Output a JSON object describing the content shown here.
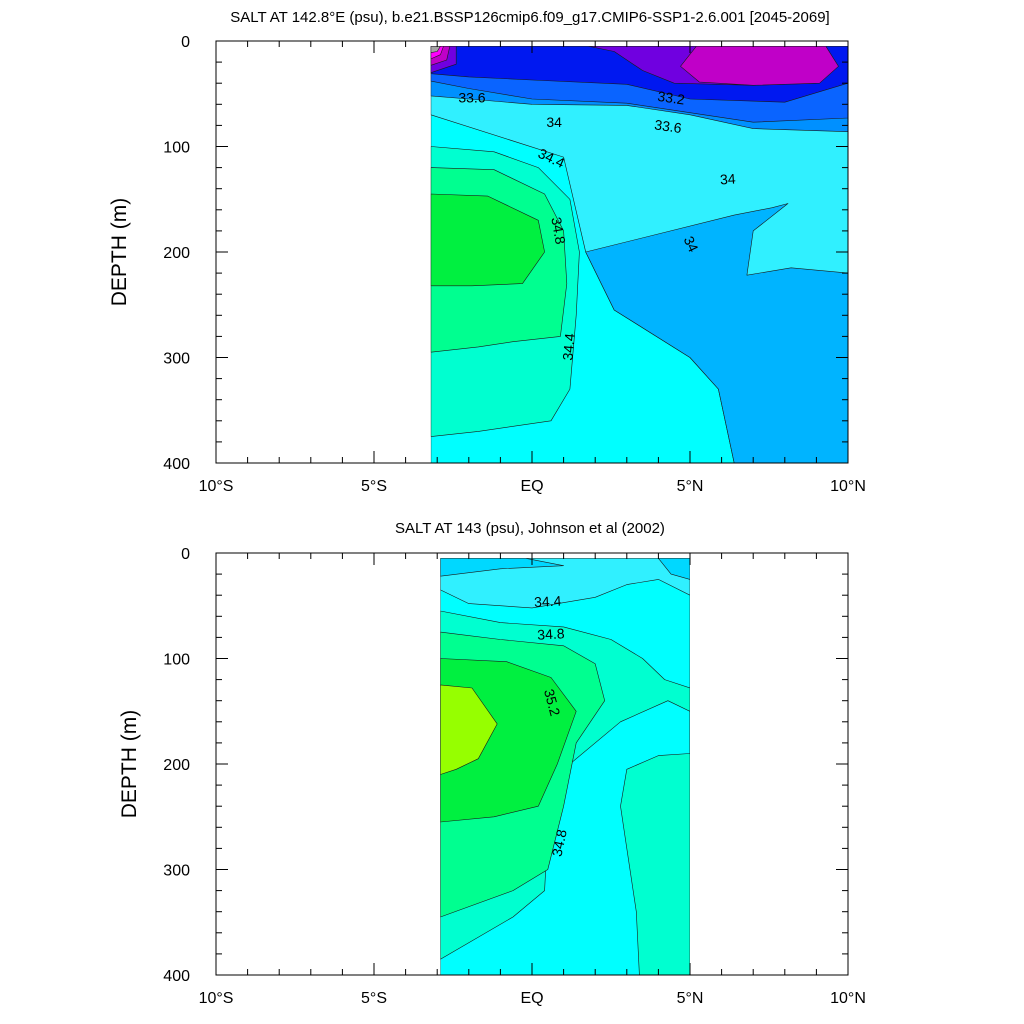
{
  "chart_data": [
    {
      "type": "contour",
      "title": "SALT AT 142.8°E (psu), b.e21.BSSP126cmip6.f09_g17.CMIP6-SSP1-2.6.001 [2045-2069]",
      "ylabel": "DEPTH (m)",
      "xlim": [
        -10,
        10
      ],
      "ylim": [
        400,
        0
      ],
      "x_ticks": [
        -10,
        -5,
        0,
        5,
        10
      ],
      "x_tick_labels": [
        "10°S",
        "5°S",
        "EQ",
        "5°N",
        "10°N"
      ],
      "y_ticks": [
        0,
        100,
        200,
        300,
        400
      ],
      "y_tick_labels": [
        "0",
        "100",
        "200",
        "300",
        "400"
      ],
      "data_extent": {
        "lat": [
          -3.2,
          10
        ],
        "depth": [
          5,
          400
        ]
      },
      "fill_colors": [
        "#a4a4a4",
        "#ff00ff",
        "#c000c8",
        "#7000e0",
        "#0018f0",
        "#0a64ff",
        "#0090ff",
        "#00b4ff",
        "#00d8ff",
        "#30f0ff",
        "#00ffff",
        "#00ffd0",
        "#00ff90",
        "#00f040",
        "#96ff00"
      ],
      "regions": [
        {
          "fill": 10,
          "pts": [
            [
              -3.2,
              5
            ],
            [
              10,
              5
            ],
            [
              10,
              400
            ],
            [
              -3.2,
              400
            ]
          ]
        },
        {
          "fill": 9,
          "pts": [
            [
              -3.2,
              5
            ],
            [
              10,
              5
            ],
            [
              10,
              400
            ],
            [
              6.4,
              400
            ],
            [
              5.9,
              330
            ],
            [
              5.0,
              300
            ],
            [
              2.6,
              255
            ],
            [
              1.7,
              200
            ],
            [
              1.0,
              110
            ],
            [
              -3.2,
              70
            ]
          ]
        },
        {
          "fill": 7,
          "pts": [
            [
              6.4,
              165
            ],
            [
              7.6,
              158
            ],
            [
              8.1,
              154
            ],
            [
              7.0,
              180
            ],
            [
              6.8,
              222
            ],
            [
              8.2,
              215
            ],
            [
              10,
              220
            ],
            [
              10,
              400
            ],
            [
              6.4,
              400
            ],
            [
              5.9,
              330
            ],
            [
              5.0,
              300
            ],
            [
              2.6,
              255
            ],
            [
              1.7,
              200
            ]
          ]
        },
        {
          "fill": 6,
          "pts": [
            [
              -3.2,
              5
            ],
            [
              10,
              5
            ],
            [
              10,
              86
            ],
            [
              7,
              83
            ],
            [
              5,
              70
            ],
            [
              3,
              61
            ],
            [
              0,
              60
            ],
            [
              -2,
              55
            ],
            [
              -3.2,
              52
            ]
          ]
        },
        {
          "fill": 5,
          "pts": [
            [
              -3.2,
              5
            ],
            [
              10,
              5
            ],
            [
              10,
              73
            ],
            [
              7,
              77
            ],
            [
              5,
              68
            ],
            [
              3,
              59
            ],
            [
              0,
              55
            ],
            [
              -2,
              45
            ],
            [
              -3.2,
              38
            ]
          ]
        },
        {
          "fill": 4,
          "pts": [
            [
              -3.2,
              5
            ],
            [
              10,
              5
            ],
            [
              10,
              40
            ],
            [
              8,
              58
            ],
            [
              5,
              55
            ],
            [
              3,
              41
            ],
            [
              0,
              37
            ],
            [
              -2,
              34
            ],
            [
              -3.2,
              31
            ]
          ]
        },
        {
          "fill": 3,
          "pts": [
            [
              1.8,
              5
            ],
            [
              8.7,
              5
            ],
            [
              9.3,
              30
            ],
            [
              9.0,
              40
            ],
            [
              7,
              42
            ],
            [
              4.5,
              40
            ],
            [
              3.5,
              28
            ],
            [
              2.6,
              10
            ]
          ]
        },
        {
          "fill": 2,
          "pts": [
            [
              5.2,
              5
            ],
            [
              9.3,
              5
            ],
            [
              9.7,
              24
            ],
            [
              9.1,
              40
            ],
            [
              7,
              42
            ],
            [
              5.3,
              39
            ],
            [
              4.7,
              24
            ]
          ]
        },
        {
          "fill": 11,
          "pts": [
            [
              -3.2,
              100
            ],
            [
              -1.2,
              105
            ],
            [
              0.2,
              120
            ],
            [
              1.2,
              150
            ],
            [
              1.5,
              200
            ],
            [
              1.4,
              260
            ],
            [
              1.2,
              330
            ],
            [
              0.6,
              360
            ],
            [
              -1.7,
              370
            ],
            [
              -3.2,
              375
            ]
          ]
        },
        {
          "fill": 12,
          "pts": [
            [
              -3.2,
              120
            ],
            [
              -1.2,
              122
            ],
            [
              0.4,
              145
            ],
            [
              1.0,
              180
            ],
            [
              1.1,
              230
            ],
            [
              0.9,
              280
            ],
            [
              -0.6,
              285
            ],
            [
              -1.7,
              290
            ],
            [
              -3.2,
              295
            ]
          ]
        },
        {
          "fill": 13,
          "pts": [
            [
              -3.2,
              145
            ],
            [
              -1.4,
              147
            ],
            [
              0.2,
              170
            ],
            [
              0.4,
              200
            ],
            [
              -0.3,
              230
            ],
            [
              -1.9,
              232
            ],
            [
              -3.2,
              232
            ]
          ]
        },
        {
          "fill": 3,
          "pts": [
            [
              -3.2,
              5
            ],
            [
              -2.4,
              5
            ],
            [
              -2.4,
              22
            ],
            [
              -3.2,
              30
            ]
          ]
        },
        {
          "fill": 2,
          "pts": [
            [
              -3.2,
              5
            ],
            [
              -2.6,
              5
            ],
            [
              -2.7,
              18
            ],
            [
              -3.2,
              23
            ]
          ]
        },
        {
          "fill": 1,
          "pts": [
            [
              -3.2,
              5
            ],
            [
              -2.8,
              5
            ],
            [
              -2.9,
              13
            ],
            [
              -3.2,
              17
            ]
          ]
        },
        {
          "fill": 0,
          "pts": [
            [
              -3.2,
              5
            ],
            [
              -2.9,
              5
            ],
            [
              -3.0,
              10
            ],
            [
              -3.2,
              11
            ]
          ]
        }
      ],
      "contour_labels": [
        {
          "text": "33.6",
          "x": -1.9,
          "y": 55,
          "angle": 0
        },
        {
          "text": "33.2",
          "x": 4.4,
          "y": 55,
          "angle": 8
        },
        {
          "text": "34",
          "x": 0.7,
          "y": 78,
          "angle": 0
        },
        {
          "text": "33.6",
          "x": 4.3,
          "y": 82,
          "angle": 8
        },
        {
          "text": "34.4",
          "x": 0.6,
          "y": 112,
          "angle": 25
        },
        {
          "text": "34",
          "x": 6.2,
          "y": 132,
          "angle": -4
        },
        {
          "text": "34.8",
          "x": 0.8,
          "y": 180,
          "angle": 80
        },
        {
          "text": "34",
          "x": 5.0,
          "y": 193,
          "angle": 65
        },
        {
          "text": "34.4",
          "x": 1.2,
          "y": 290,
          "angle": -85
        }
      ]
    },
    {
      "type": "contour",
      "title": "SALT AT 143 (psu), Johnson et al (2002)",
      "ylabel": "DEPTH (m)",
      "xlim": [
        -10,
        10
      ],
      "ylim": [
        400,
        0
      ],
      "x_ticks": [
        -10,
        -5,
        0,
        5,
        10
      ],
      "x_tick_labels": [
        "10°S",
        "5°S",
        "EQ",
        "5°N",
        "10°N"
      ],
      "y_ticks": [
        0,
        100,
        200,
        300,
        400
      ],
      "y_tick_labels": [
        "0",
        "100",
        "200",
        "300",
        "400"
      ],
      "data_extent": {
        "lat": [
          -2.9,
          5
        ],
        "depth": [
          5,
          400
        ]
      },
      "fill_colors": [
        "#a4a4a4",
        "#ff00ff",
        "#c000c8",
        "#7000e0",
        "#0018f0",
        "#0a64ff",
        "#0090ff",
        "#00b4ff",
        "#00d8ff",
        "#30f0ff",
        "#00ffff",
        "#00ffd0",
        "#00ff90",
        "#00f040",
        "#96ff00"
      ],
      "regions": [
        {
          "fill": 10,
          "pts": [
            [
              -2.9,
              5
            ],
            [
              5,
              5
            ],
            [
              5,
              400
            ],
            [
              -2.9,
              400
            ]
          ]
        },
        {
          "fill": 9,
          "pts": [
            [
              -2.9,
              5
            ],
            [
              5,
              5
            ],
            [
              5,
              40
            ],
            [
              4,
              25
            ],
            [
              3,
              30
            ],
            [
              2,
              42
            ],
            [
              0,
              52
            ],
            [
              -2,
              48
            ],
            [
              -2.9,
              35
            ]
          ]
        },
        {
          "fill": 8,
          "pts": [
            [
              -2.9,
              5
            ],
            [
              -0.2,
              5
            ],
            [
              1.0,
              12
            ],
            [
              -1,
              15
            ],
            [
              -2.9,
              22
            ]
          ]
        },
        {
          "fill": 8,
          "pts": [
            [
              4.0,
              5
            ],
            [
              5,
              5
            ],
            [
              5,
              25
            ],
            [
              4.4,
              20
            ]
          ]
        },
        {
          "fill": 11,
          "pts": [
            [
              -2.9,
              55
            ],
            [
              -1,
              66
            ],
            [
              1,
              70
            ],
            [
              2.5,
              82
            ],
            [
              3.5,
              100
            ],
            [
              4.2,
              120
            ],
            [
              5,
              128
            ],
            [
              5,
              400
            ],
            [
              3.4,
              400
            ],
            [
              3.3,
              340
            ],
            [
              3.0,
              280
            ],
            [
              2.8,
              240
            ],
            [
              3.0,
              205
            ],
            [
              4.0,
              192
            ],
            [
              5,
              190
            ],
            [
              5,
              150
            ],
            [
              4.3,
              140
            ],
            [
              2.8,
              160
            ],
            [
              1.2,
              200
            ],
            [
              0.5,
              260
            ],
            [
              0.4,
              320
            ],
            [
              -0.6,
              345
            ],
            [
              -2.9,
              385
            ]
          ]
        },
        {
          "fill": 12,
          "pts": [
            [
              -2.9,
              75
            ],
            [
              -1,
              82
            ],
            [
              1,
              88
            ],
            [
              2,
              105
            ],
            [
              2.3,
              140
            ],
            [
              1.4,
              180
            ],
            [
              1.0,
              240
            ],
            [
              0.5,
              300
            ],
            [
              -0.6,
              320
            ],
            [
              -2.9,
              345
            ]
          ]
        },
        {
          "fill": 13,
          "pts": [
            [
              -2.9,
              100
            ],
            [
              -0.8,
              103
            ],
            [
              0.6,
              118
            ],
            [
              1.4,
              150
            ],
            [
              0.8,
              200
            ],
            [
              0.2,
              240
            ],
            [
              -1.2,
              250
            ],
            [
              -2.9,
              255
            ]
          ]
        },
        {
          "fill": 14,
          "pts": [
            [
              -2.9,
              125
            ],
            [
              -1.9,
              128
            ],
            [
              -1.1,
              162
            ],
            [
              -1.7,
              195
            ],
            [
              -2.4,
              205
            ],
            [
              -2.9,
              210
            ]
          ]
        }
      ],
      "contour_labels": [
        {
          "text": "34.4",
          "x": 0.5,
          "y": 47,
          "angle": -3
        },
        {
          "text": "34.8",
          "x": 0.6,
          "y": 78,
          "angle": -3
        },
        {
          "text": "35.2",
          "x": 0.6,
          "y": 142,
          "angle": 75
        },
        {
          "text": "34.8",
          "x": 0.9,
          "y": 275,
          "angle": -78
        }
      ]
    }
  ]
}
